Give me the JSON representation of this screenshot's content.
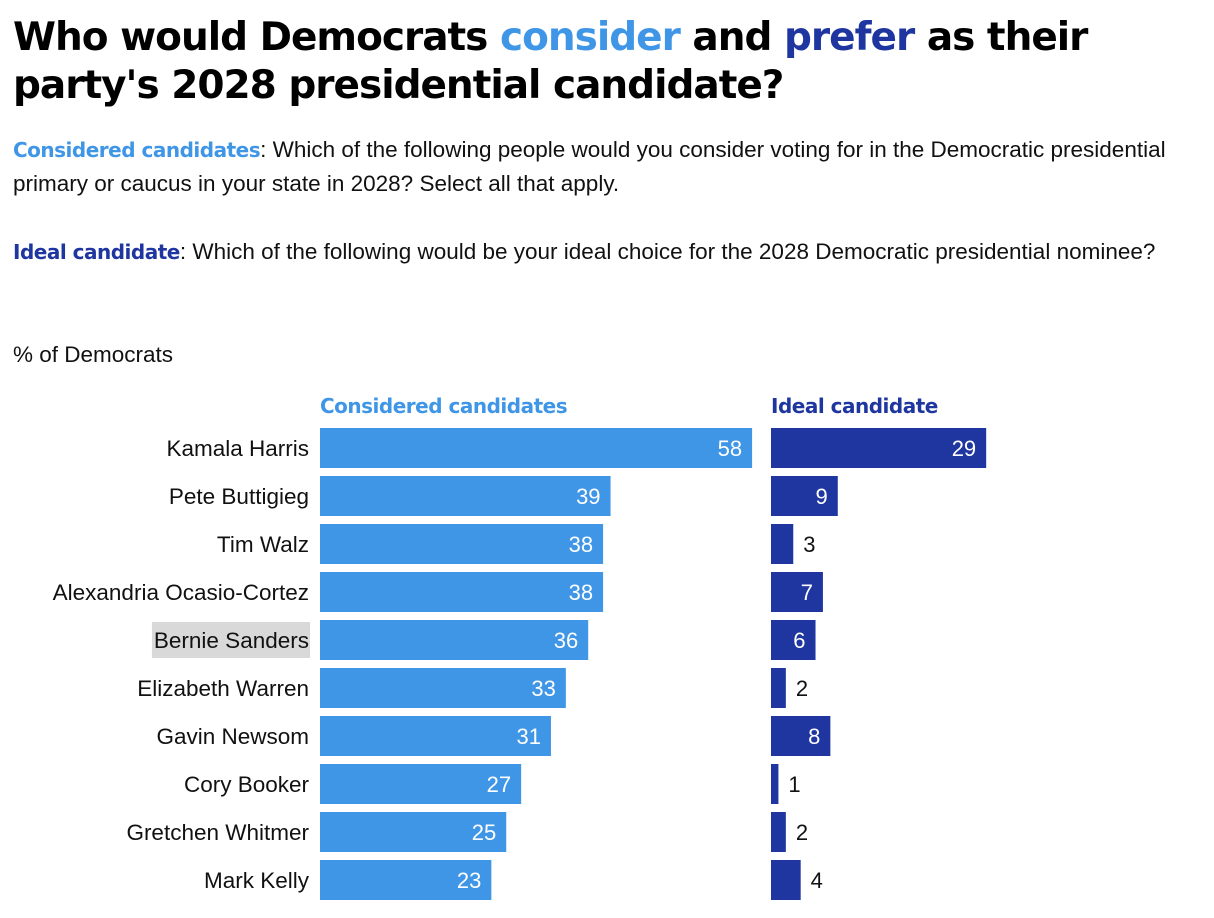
{
  "title": {
    "part1": "Who would Democrats ",
    "consider": "consider",
    "part2": " and ",
    "prefer": "prefer",
    "part3": " as their party's 2028 presidential candidate?"
  },
  "description": {
    "considered_label": "Considered candidates",
    "considered_text": ": Which of the following people would you consider voting for in the Democratic presidential primary or caucus in your state in 2028? Select all that apply.",
    "ideal_label": "Ideal candidate",
    "ideal_text": ": Which of the following would be your ideal choice for the 2028 Democratic presidential nominee?"
  },
  "unit_label": "% of Democrats",
  "colors": {
    "considered": "#3f96e6",
    "ideal": "#1f36a0",
    "highlight": "#d9d9d9"
  },
  "highlighted_category": "Bernie Sanders",
  "chart_data": {
    "type": "bar",
    "orientation": "horizontal",
    "categories": [
      "Kamala Harris",
      "Pete Buttigieg",
      "Tim Walz",
      "Alexandria Ocasio-Cortez",
      "Bernie Sanders",
      "Elizabeth Warren",
      "Gavin Newsom",
      "Cory Booker",
      "Gretchen Whitmer",
      "Mark Kelly"
    ],
    "series": [
      {
        "name": "Considered candidates",
        "values": [
          58,
          39,
          38,
          38,
          36,
          33,
          31,
          27,
          25,
          23
        ]
      },
      {
        "name": "Ideal candidate",
        "values": [
          29,
          9,
          3,
          7,
          6,
          2,
          8,
          1,
          2,
          4
        ]
      }
    ],
    "layout": "side-by-side panels, one per series",
    "grid": false
  }
}
